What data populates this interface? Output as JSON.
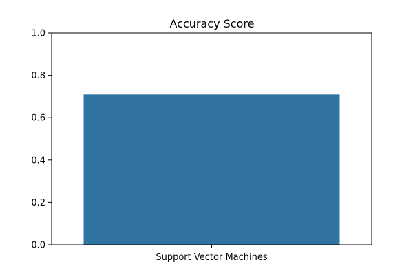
{
  "chart_data": {
    "type": "bar",
    "title": "Accuracy Score",
    "xlabel": "",
    "ylabel": "",
    "categories": [
      "Support Vector Machines"
    ],
    "values": [
      0.71
    ],
    "ylim": [
      0,
      1.0
    ],
    "yticks": [
      "0.0",
      "0.2",
      "0.4",
      "0.6",
      "0.8",
      "1.0"
    ],
    "grid": false,
    "legend": "none",
    "colors": {
      "bar": "#3274a1",
      "axis": "#000000",
      "background": "#ffffff"
    }
  }
}
